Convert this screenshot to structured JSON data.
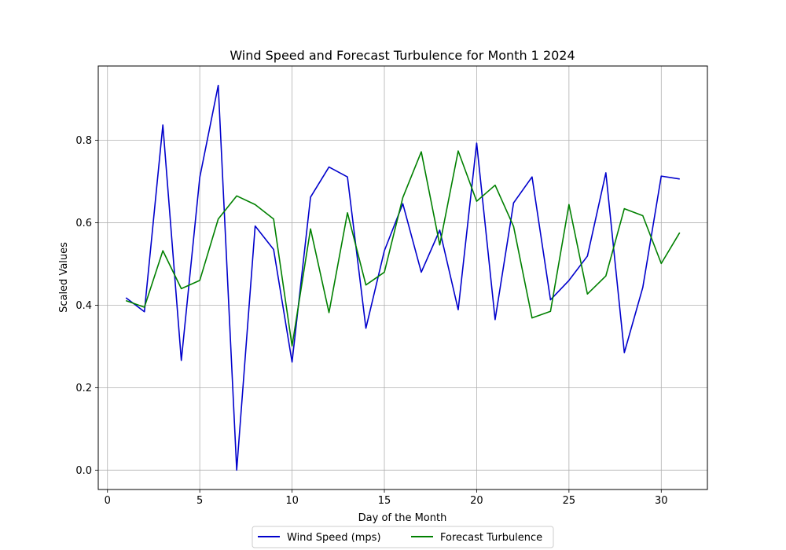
{
  "chart_data": {
    "type": "line",
    "title": "Wind Speed and Forecast Turbulence for Month 1 2024",
    "xlabel": "Day of the Month",
    "ylabel": "Scaled Values",
    "xlim": [
      -0.5,
      32.5
    ],
    "ylim": [
      -0.047,
      0.98
    ],
    "xticks": [
      0,
      5,
      10,
      15,
      20,
      25,
      30
    ],
    "yticks": [
      0.0,
      0.2,
      0.4,
      0.6,
      0.8
    ],
    "ytick_labels": [
      "0.0",
      "0.2",
      "0.4",
      "0.6",
      "0.8"
    ],
    "grid": true,
    "legend_position": "bottom-center",
    "x": [
      1,
      2,
      3,
      4,
      5,
      6,
      7,
      8,
      9,
      10,
      11,
      12,
      13,
      14,
      15,
      16,
      17,
      18,
      19,
      20,
      21,
      22,
      23,
      24,
      25,
      26,
      27,
      28,
      29,
      30,
      31
    ],
    "series": [
      {
        "name": "Wind Speed (mps)",
        "color": "#0000cc",
        "values": [
          0.418,
          0.384,
          0.837,
          0.266,
          0.71,
          0.933,
          0.0,
          0.592,
          0.535,
          0.262,
          0.662,
          0.735,
          0.711,
          0.344,
          0.532,
          0.646,
          0.48,
          0.582,
          0.389,
          0.793,
          0.365,
          0.648,
          0.711,
          0.413,
          0.46,
          0.519,
          0.721,
          0.285,
          0.443,
          0.713,
          0.706
        ]
      },
      {
        "name": "Forecast Turbulence",
        "color": "#008000",
        "values": [
          0.411,
          0.395,
          0.532,
          0.44,
          0.46,
          0.609,
          0.665,
          0.644,
          0.609,
          0.301,
          0.585,
          0.382,
          0.624,
          0.449,
          0.48,
          0.661,
          0.772,
          0.546,
          0.774,
          0.652,
          0.691,
          0.591,
          0.369,
          0.385,
          0.644,
          0.427,
          0.471,
          0.634,
          0.617,
          0.501,
          0.576
        ]
      }
    ]
  }
}
